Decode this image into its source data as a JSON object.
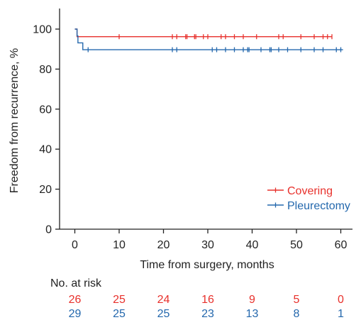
{
  "chart_data": {
    "type": "line",
    "subtype": "kaplan-meier",
    "xlabel": "Time from surgery, months",
    "ylabel": "Freedom from recurrence, %",
    "xlim": [
      -2,
      62
    ],
    "ylim": [
      0,
      110
    ],
    "xticks": [
      0,
      10,
      20,
      30,
      40,
      50,
      60
    ],
    "yticks": [
      0,
      20,
      40,
      60,
      80,
      100
    ],
    "grid": false,
    "legend_position": "bottom-right",
    "series": [
      {
        "name": "Covering",
        "color": "#e8312c",
        "steps": [
          [
            0,
            100
          ],
          [
            0.5,
            96.2
          ],
          [
            58,
            96.2
          ]
        ],
        "censored_x": [
          10,
          22,
          23,
          25,
          25.3,
          27,
          27.3,
          29,
          30,
          33,
          34,
          36,
          38,
          41,
          46,
          47,
          51,
          54,
          56,
          57,
          58
        ]
      },
      {
        "name": "Pleurectomy",
        "color": "#2468ad",
        "steps": [
          [
            0,
            100
          ],
          [
            0.5,
            96.6
          ],
          [
            0.7,
            93.1
          ],
          [
            1.8,
            89.7
          ],
          [
            60.5,
            89.7
          ]
        ],
        "censored_x": [
          3,
          22,
          23,
          31,
          32,
          34,
          36,
          38,
          39,
          39.3,
          42,
          44,
          44.3,
          46,
          48,
          51,
          54,
          56,
          59,
          60
        ]
      }
    ],
    "risk_table": {
      "title": "No. at risk",
      "timepoints": [
        0,
        10,
        20,
        30,
        40,
        50,
        60
      ],
      "rows": [
        {
          "name": "Covering",
          "color": "#e8312c",
          "values": [
            "26",
            "25",
            "24",
            "16",
            "9",
            "5",
            "0"
          ]
        },
        {
          "name": "Pleurectomy",
          "color": "#2468ad",
          "values": [
            "29",
            "25",
            "25",
            "23",
            "13",
            "8",
            "1"
          ]
        }
      ]
    }
  }
}
